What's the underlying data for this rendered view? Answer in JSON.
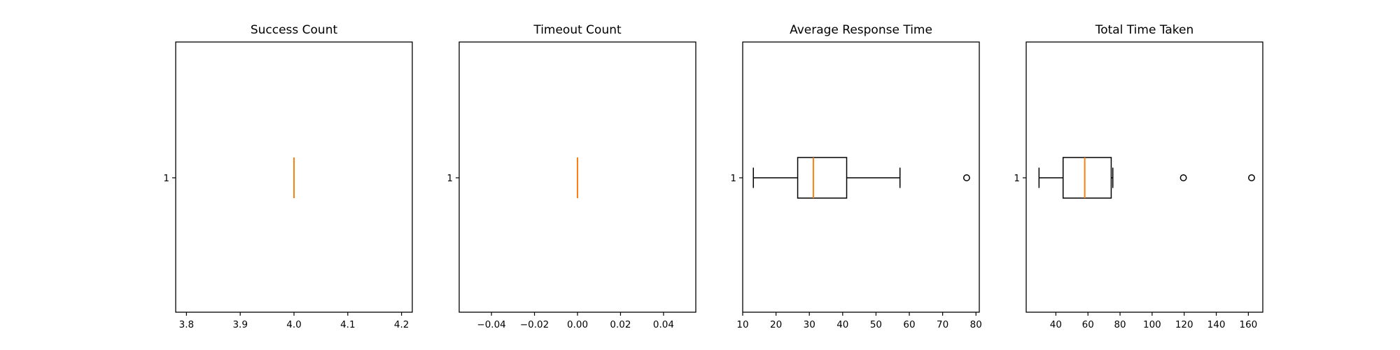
{
  "chart_data": [
    {
      "type": "boxplot",
      "orientation": "horizontal",
      "title": "Success Count",
      "xlim": [
        3.78,
        4.22
      ],
      "xticks": [
        3.8,
        3.9,
        4.0,
        4.1,
        4.2
      ],
      "xtick_labels": [
        "3.8",
        "3.9",
        "4.0",
        "4.1",
        "4.2"
      ],
      "yticks": [
        "1"
      ],
      "box": {
        "whislo": 4.0,
        "q1": 4.0,
        "med": 4.0,
        "q3": 4.0,
        "whishi": 4.0,
        "fliers": []
      }
    },
    {
      "type": "boxplot",
      "orientation": "horizontal",
      "title": "Timeout Count",
      "xlim": [
        -0.055,
        0.055
      ],
      "xticks": [
        -0.04,
        -0.02,
        0.0,
        0.02,
        0.04
      ],
      "xtick_labels": [
        "−0.04",
        "−0.02",
        "0.00",
        "0.02",
        "0.04"
      ],
      "yticks": [
        "1"
      ],
      "box": {
        "whislo": 0.0,
        "q1": 0.0,
        "med": 0.0,
        "q3": 0.0,
        "whishi": 0.0,
        "fliers": []
      }
    },
    {
      "type": "boxplot",
      "orientation": "horizontal",
      "title": "Average Response Time",
      "xlim": [
        10,
        81
      ],
      "xticks": [
        10,
        20,
        30,
        40,
        50,
        60,
        70,
        80
      ],
      "xtick_labels": [
        "10",
        "20",
        "30",
        "40",
        "50",
        "60",
        "70",
        "80"
      ],
      "yticks": [
        "1"
      ],
      "box": {
        "whislo": 13.2,
        "q1": 26.5,
        "med": 31.2,
        "q3": 41.2,
        "whishi": 57.2,
        "fliers": [
          77.2
        ]
      }
    },
    {
      "type": "boxplot",
      "orientation": "horizontal",
      "title": "Total Time Taken",
      "xlim": [
        21.5,
        169
      ],
      "xticks": [
        40,
        60,
        80,
        100,
        120,
        140,
        160
      ],
      "xtick_labels": [
        "40",
        "60",
        "80",
        "100",
        "120",
        "140",
        "160"
      ],
      "yticks": [
        "1"
      ],
      "box": {
        "whislo": 29.5,
        "q1": 44.5,
        "med": 58,
        "q3": 74.5,
        "whishi": 75.5,
        "fliers": [
          119.5,
          162
        ]
      }
    }
  ],
  "colors": {
    "median": "#ff7f0e",
    "box": "#000000",
    "frame": "#000000",
    "background": "#ffffff"
  }
}
